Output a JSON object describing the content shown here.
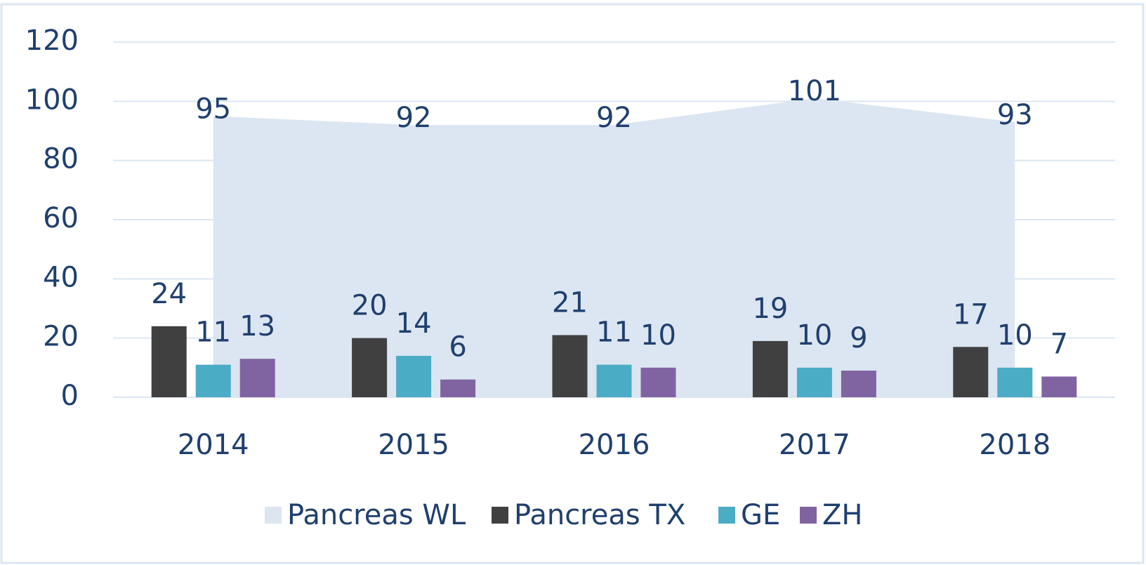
{
  "chart_data": {
    "type": "bar",
    "categories": [
      "2014",
      "2015",
      "2016",
      "2017",
      "2018"
    ],
    "series": [
      {
        "name": "Pancreas WL",
        "type": "area",
        "color": "#dce6f2",
        "values": [
          95,
          92,
          92,
          101,
          93
        ]
      },
      {
        "name": "Pancreas TX",
        "color": "#404040",
        "values": [
          24,
          20,
          21,
          19,
          17
        ]
      },
      {
        "name": "GE",
        "color": "#4bacc6",
        "values": [
          11,
          14,
          11,
          10,
          10
        ]
      },
      {
        "name": "ZH",
        "color": "#8064a2",
        "values": [
          13,
          6,
          10,
          9,
          7
        ]
      }
    ],
    "ylim": [
      0,
      120
    ],
    "yticks": [
      0,
      20,
      40,
      60,
      80,
      100,
      120
    ],
    "grid": true,
    "legend": "bottom"
  }
}
